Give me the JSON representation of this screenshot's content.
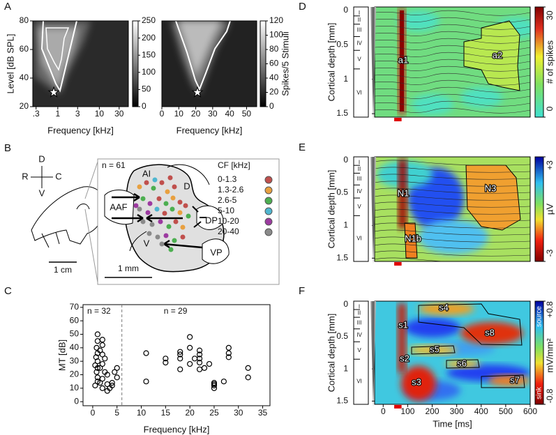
{
  "panel_labels": [
    "A",
    "B",
    "C",
    "D",
    "E",
    "F"
  ],
  "layers": [
    "I",
    "II",
    "III",
    "IV",
    "V",
    "VI"
  ],
  "chart_data": [
    {
      "type": "heatmap",
      "xlabel": "Frequency [kHz]",
      "ylabel": "Level [dB SPL]",
      "xscale": "log",
      "xlim": [
        0.25,
        50
      ],
      "xticks": [
        {
          "value": 0.3,
          "label": ".3"
        },
        1,
        3,
        10,
        30
      ],
      "ylim": [
        20,
        80
      ],
      "yticks": [
        20,
        40,
        60,
        80
      ],
      "colorbar": {
        "lim": [
          0,
          250
        ],
        "ticks": [
          0,
          50,
          100,
          150,
          200,
          250
        ]
      },
      "marker": {
        "x": 0.8,
        "y": 30
      }
    },
    {
      "type": "heatmap",
      "xlabel": "Frequency [kHz]",
      "xlim": [
        0,
        56
      ],
      "xticks": [
        0,
        10,
        20,
        30,
        40,
        50
      ],
      "ylim": [
        20,
        80
      ],
      "colorbar": {
        "label": "Spikes/5 Stimuli",
        "lim": [
          0,
          120
        ],
        "ticks": [
          0,
          20,
          40,
          60,
          80,
          100,
          120
        ]
      },
      "marker": {
        "x": 21,
        "y": 30
      }
    },
    {
      "type": "scatter",
      "xlabel": "Frequency [kHz]",
      "ylabel": "MT [dB]",
      "xlim": [
        -2,
        36.5
      ],
      "xticks": [
        0,
        5,
        10,
        15,
        20,
        25,
        30,
        35
      ],
      "ylim": [
        -3,
        72
      ],
      "yticks": [
        0,
        10,
        20,
        30,
        40,
        50,
        60,
        70
      ],
      "divider_x": 6,
      "annotations": [
        "n = 32",
        "n = 29"
      ],
      "color": "#000000",
      "x": [
        1,
        1,
        0.8,
        1,
        0.7,
        1,
        0.5,
        1,
        0.8,
        1,
        1,
        0.5,
        2,
        2,
        1.5,
        2,
        2.5,
        2,
        1.5,
        2.5,
        2,
        3,
        2,
        3,
        3.5,
        4,
        4.5,
        5,
        5,
        4,
        3,
        1.5,
        11,
        11,
        15,
        15,
        18,
        18,
        18,
        18,
        20,
        20,
        20,
        22,
        22,
        22,
        22,
        22,
        23,
        25,
        25,
        25,
        27,
        28,
        28,
        28,
        32,
        32,
        25,
        24,
        21
      ],
      "y": [
        50,
        45,
        40,
        36,
        33,
        30,
        27,
        25,
        22,
        18,
        15,
        12,
        46,
        42,
        38,
        35,
        32,
        28,
        25,
        22,
        17,
        13,
        10,
        8,
        10,
        14,
        22,
        25,
        18,
        12,
        20,
        14,
        36,
        15,
        32,
        29,
        37,
        35,
        32,
        24,
        48,
        40,
        28,
        38,
        35,
        32,
        29,
        24,
        25,
        14,
        10,
        13,
        15,
        40,
        36,
        33,
        25,
        18,
        12,
        28,
        32
      ]
    },
    {
      "type": "heatmap",
      "ylabel": "Cortical depth [mm]",
      "xlim": [
        -35,
        600
      ],
      "ylim": [
        1.55,
        -0.05
      ],
      "yticks": [
        0,
        0.5,
        1,
        1.5
      ],
      "stimulus": [
        45,
        75
      ],
      "colorbar": {
        "label": "# of spikes",
        "lim": [
          0,
          30
        ],
        "ticks": [
          0,
          30
        ]
      },
      "annotations": [
        "a1",
        "a2"
      ]
    },
    {
      "type": "heatmap",
      "ylabel": "Cortical depth [mm]",
      "xlim": [
        -35,
        600
      ],
      "ylim": [
        1.55,
        -0.05
      ],
      "yticks": [
        0,
        0.5,
        1,
        1.5
      ],
      "stimulus": [
        45,
        75
      ],
      "colorbar": {
        "label": "µV",
        "lim": [
          -3,
          3
        ],
        "ticks": [
          -3,
          {
            "value": 3,
            "label": "+3"
          }
        ]
      },
      "annotations": [
        "N1",
        "N1b",
        "N3"
      ]
    },
    {
      "type": "heatmap",
      "ylabel": "Cortical depth [mm]",
      "xlabel": "Time [ms]",
      "xlim": [
        -35,
        600
      ],
      "xticks": [
        0,
        100,
        200,
        300,
        400,
        500,
        600
      ],
      "ylim": [
        1.55,
        -0.05
      ],
      "yticks": [
        0,
        0.5,
        1,
        1.5
      ],
      "stimulus": [
        45,
        75
      ],
      "colorbar": {
        "label": "mV/mm²",
        "lim": [
          -0.8,
          0.8
        ],
        "ticks": [
          -0.8,
          {
            "value": 0.8,
            "label": "+0.8"
          }
        ],
        "ends": [
          "source",
          "sink"
        ]
      },
      "annotations": [
        "s1",
        "s2",
        "s3",
        "s4",
        "s5",
        "s6",
        "s7",
        "s8"
      ]
    }
  ],
  "diagram": {
    "compass": [
      "D",
      "R",
      "C",
      "V"
    ],
    "skull_scale": "1 cm",
    "n": "n = 61",
    "areas": [
      "AI",
      "D",
      "AAF",
      "DP",
      "V",
      "VP"
    ],
    "area_scale": "1 mm",
    "legend_title": "CF [kHz]",
    "legend": [
      {
        "label": "0-1.3",
        "color": "#c0504d"
      },
      {
        "label": "1.3-2.6",
        "color": "#e8a040"
      },
      {
        "label": "2.6-5",
        "color": "#4caf50"
      },
      {
        "label": "5-10",
        "color": "#4fb6d0"
      },
      {
        "label": "10-20",
        "color": "#9c3aa0"
      },
      {
        "label": "20-40",
        "color": "#8a8a8a"
      }
    ]
  }
}
